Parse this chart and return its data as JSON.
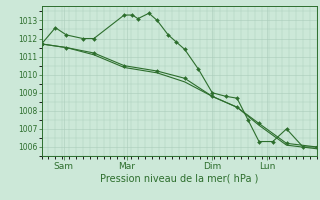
{
  "bg_color": "#cce8d8",
  "grid_color": "#aaccbb",
  "line_color": "#2d6e2d",
  "xlabel": "Pression niveau de la mer( hPa )",
  "ylim": [
    1005.5,
    1013.8
  ],
  "yticks": [
    1006,
    1007,
    1008,
    1009,
    1010,
    1011,
    1012,
    1013
  ],
  "xtick_labels": [
    "Sam",
    "Mar",
    "Dim",
    "Lun"
  ],
  "xtick_positions": [
    0.08,
    0.31,
    0.62,
    0.82
  ],
  "series1_x": [
    0.0,
    0.05,
    0.09,
    0.15,
    0.19,
    0.3,
    0.33,
    0.35,
    0.39,
    0.42,
    0.46,
    0.49,
    0.52,
    0.57,
    0.62,
    0.67,
    0.71,
    0.75,
    0.79,
    0.84,
    0.89,
    0.95,
    1.0
  ],
  "series1_y": [
    1011.7,
    1012.6,
    1012.2,
    1012.0,
    1012.0,
    1013.3,
    1013.3,
    1013.1,
    1013.4,
    1013.0,
    1012.2,
    1011.8,
    1011.4,
    1010.3,
    1009.0,
    1008.8,
    1008.7,
    1007.5,
    1006.3,
    1006.3,
    1007.0,
    1006.0,
    1006.0
  ],
  "series2_x": [
    0.0,
    0.09,
    0.19,
    0.3,
    0.42,
    0.52,
    0.62,
    0.71,
    0.79,
    0.89,
    1.0
  ],
  "series2_y": [
    1011.7,
    1011.5,
    1011.2,
    1010.5,
    1010.2,
    1009.8,
    1008.8,
    1008.2,
    1007.3,
    1006.2,
    1006.0
  ],
  "series3_x": [
    0.0,
    0.09,
    0.19,
    0.3,
    0.42,
    0.52,
    0.62,
    0.71,
    0.79,
    0.89,
    1.0
  ],
  "series3_y": [
    1011.7,
    1011.5,
    1011.1,
    1010.4,
    1010.1,
    1009.6,
    1008.8,
    1008.2,
    1007.2,
    1006.1,
    1005.9
  ]
}
